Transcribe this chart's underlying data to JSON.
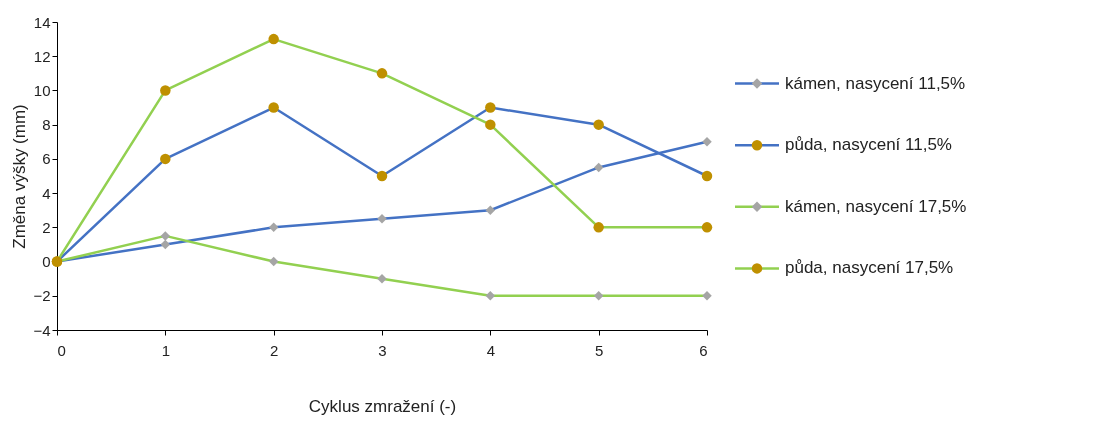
{
  "chart_data": {
    "type": "line",
    "xlabel": "Cyklus zmražení (-)",
    "ylabel": "Změna výšky (mm)",
    "x": [
      0,
      1,
      2,
      3,
      4,
      5,
      6
    ],
    "series": [
      {
        "name": "kámen, nasycení 11,5%",
        "color": "#4472c4",
        "marker": "diamond",
        "colors": [
          "#a5a5a5",
          "#a5a5a5",
          "#a5a5a5",
          "#a5a5a5",
          "#a5a5a5",
          "#a5a5a5",
          "#a5a5a5"
        ],
        "values": [
          0,
          1,
          2,
          2.5,
          3,
          5.5,
          7
        ]
      },
      {
        "name": "půda, nasycení 11,5%",
        "color": "#4472c4",
        "marker": "circle",
        "colors": [
          "#bf9000",
          "#bf9000",
          "#bf9000",
          "#bf9000",
          "#bf9000",
          "#bf9000",
          "#bf9000"
        ],
        "values": [
          0,
          6,
          9,
          5,
          9,
          8,
          5
        ]
      },
      {
        "name": "kámen, nasycení 17,5%",
        "color": "#92d050",
        "marker": "diamond",
        "colors": [
          "#a5a5a5",
          "#a5a5a5",
          "#a5a5a5",
          "#a5a5a5",
          "#a5a5a5",
          "#a5a5a5",
          "#a5a5a5"
        ],
        "values": [
          0,
          1.5,
          0,
          -1,
          -2,
          -2,
          -2
        ]
      },
      {
        "name": "půda, nasycení 17,5%",
        "color": "#92d050",
        "marker": "circle",
        "colors": [
          "#bf9000",
          "#bf9000",
          "#bf9000",
          "#bf9000",
          "#bf9000",
          "#bf9000",
          "#bf9000"
        ],
        "values": [
          0,
          10,
          13,
          11,
          8,
          2,
          2
        ]
      }
    ],
    "xlim": [
      0,
      6
    ],
    "xticks": [
      0,
      1,
      2,
      3,
      4,
      5,
      6
    ],
    "ylim": [
      -4,
      14
    ],
    "yticks": [
      -4,
      -2,
      0,
      2,
      4,
      6,
      8,
      10,
      12,
      14
    ],
    "grid": false,
    "legend": "right",
    "line_style": "solid"
  }
}
